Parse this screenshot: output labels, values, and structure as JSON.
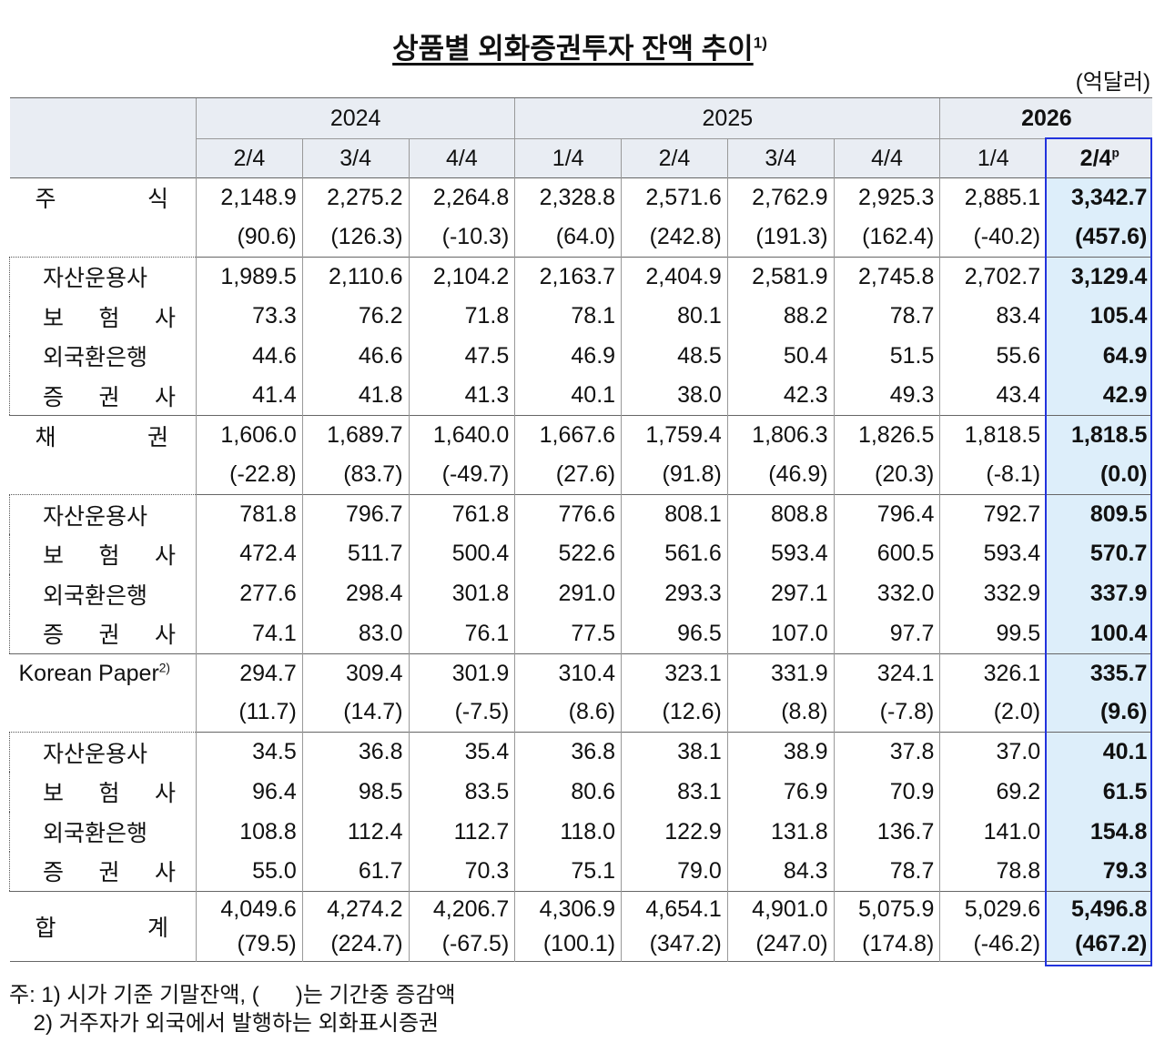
{
  "title": "상품별 외화증권투자 잔액 추이",
  "title_note": "1)",
  "unit": "(억달러)",
  "header": {
    "years": [
      "2024",
      "2025",
      "2026"
    ],
    "quarters": [
      "2/4",
      "3/4",
      "4/4",
      "1/4",
      "2/4",
      "3/4",
      "4/4",
      "1/4",
      "2/4"
    ],
    "last_quarter_note": "p"
  },
  "sections": [
    {
      "main": {
        "label": "주 식",
        "values": [
          "2,148.9",
          "2,275.2",
          "2,264.8",
          "2,328.8",
          "2,571.6",
          "2,762.9",
          "2,925.3",
          "2,885.1",
          "3,342.7"
        ],
        "changes": [
          "(90.6)",
          "(126.3)",
          "(-10.3)",
          "(64.0)",
          "(242.8)",
          "(191.3)",
          "(162.4)",
          "(-40.2)",
          "(457.6)"
        ]
      },
      "sub": [
        {
          "label": "자산운용사",
          "values": [
            "1,989.5",
            "2,110.6",
            "2,104.2",
            "2,163.7",
            "2,404.9",
            "2,581.9",
            "2,745.8",
            "2,702.7",
            "3,129.4"
          ]
        },
        {
          "label": "보 험 사",
          "values": [
            "73.3",
            "76.2",
            "71.8",
            "78.1",
            "80.1",
            "88.2",
            "78.7",
            "83.4",
            "105.4"
          ]
        },
        {
          "label": "외국환은행",
          "values": [
            "44.6",
            "46.6",
            "47.5",
            "46.9",
            "48.5",
            "50.4",
            "51.5",
            "55.6",
            "64.9"
          ]
        },
        {
          "label": "증 권 사",
          "values": [
            "41.4",
            "41.8",
            "41.3",
            "40.1",
            "38.0",
            "42.3",
            "49.3",
            "43.4",
            "42.9"
          ]
        }
      ]
    },
    {
      "main": {
        "label": "채 권",
        "values": [
          "1,606.0",
          "1,689.7",
          "1,640.0",
          "1,667.6",
          "1,759.4",
          "1,806.3",
          "1,826.5",
          "1,818.5",
          "1,818.5"
        ],
        "changes": [
          "(-22.8)",
          "(83.7)",
          "(-49.7)",
          "(27.6)",
          "(91.8)",
          "(46.9)",
          "(20.3)",
          "(-8.1)",
          "(0.0)"
        ]
      },
      "sub": [
        {
          "label": "자산운용사",
          "values": [
            "781.8",
            "796.7",
            "761.8",
            "776.6",
            "808.1",
            "808.8",
            "796.4",
            "792.7",
            "809.5"
          ]
        },
        {
          "label": "보 험 사",
          "values": [
            "472.4",
            "511.7",
            "500.4",
            "522.6",
            "561.6",
            "593.4",
            "600.5",
            "593.4",
            "570.7"
          ]
        },
        {
          "label": "외국환은행",
          "values": [
            "277.6",
            "298.4",
            "301.8",
            "291.0",
            "293.3",
            "297.1",
            "332.0",
            "332.9",
            "337.9"
          ]
        },
        {
          "label": "증 권 사",
          "values": [
            "74.1",
            "83.0",
            "76.1",
            "77.5",
            "96.5",
            "107.0",
            "97.7",
            "99.5",
            "100.4"
          ]
        }
      ]
    },
    {
      "main": {
        "label": "Korean Paper",
        "note": "2)",
        "values": [
          "294.7",
          "309.4",
          "301.9",
          "310.4",
          "323.1",
          "331.9",
          "324.1",
          "326.1",
          "335.7"
        ],
        "changes": [
          "(11.7)",
          "(14.7)",
          "(-7.5)",
          "(8.6)",
          "(12.6)",
          "(8.8)",
          "(-7.8)",
          "(2.0)",
          "(9.6)"
        ]
      },
      "sub": [
        {
          "label": "자산운용사",
          "values": [
            "34.5",
            "36.8",
            "35.4",
            "36.8",
            "38.1",
            "38.9",
            "37.8",
            "37.0",
            "40.1"
          ]
        },
        {
          "label": "보 험 사",
          "values": [
            "96.4",
            "98.5",
            "83.5",
            "80.6",
            "83.1",
            "76.9",
            "70.9",
            "69.2",
            "61.5"
          ]
        },
        {
          "label": "외국환은행",
          "values": [
            "108.8",
            "112.4",
            "112.7",
            "118.0",
            "122.9",
            "131.8",
            "136.7",
            "141.0",
            "154.8"
          ]
        },
        {
          "label": "증 권 사",
          "values": [
            "55.0",
            "61.7",
            "70.3",
            "75.1",
            "79.0",
            "84.3",
            "78.7",
            "78.8",
            "79.3"
          ]
        }
      ]
    }
  ],
  "total": {
    "label": "합 계",
    "values": [
      "4,049.6",
      "4,274.2",
      "4,206.7",
      "4,306.9",
      "4,654.1",
      "4,901.0",
      "5,075.9",
      "5,029.6",
      "5,496.8"
    ],
    "changes": [
      "(79.5)",
      "(224.7)",
      "(-67.5)",
      "(100.1)",
      "(347.2)",
      "(247.0)",
      "(174.8)",
      "(-46.2)",
      "(467.2)"
    ]
  },
  "footnotes": {
    "prefix": "주:",
    "items": [
      "1) 시가 기준 기말잔액, (      )는 기간중 증감액",
      "2) 거주자가 외국에서 발행하는 외화표시증권"
    ]
  }
}
